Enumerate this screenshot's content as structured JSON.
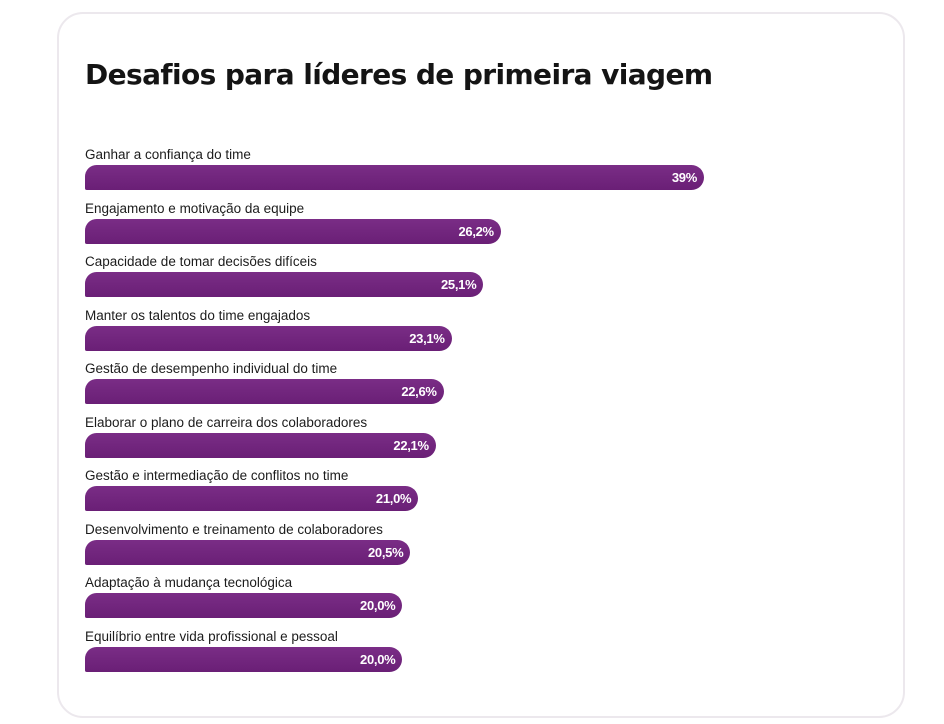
{
  "chart_data": {
    "type": "bar",
    "orientation": "horizontal",
    "title": "Desafios para líderes de primeira viagem",
    "categories": [
      "Ganhar a confiança do time",
      "Engajamento e motivação da equipe",
      "Capacidade de tomar decisões difíceis",
      "Manter os talentos do time engajados",
      "Gestão de desempenho individual do time",
      "Elaborar o plano de carreira dos colaboradores",
      "Gestão e intermediação de conflitos no time",
      "Desenvolvimento e treinamento de colaboradores",
      "Adaptação à mudança tecnológica",
      "Equilíbrio entre vida profissional e pessoal"
    ],
    "values": [
      39,
      26.2,
      25.1,
      23.1,
      22.6,
      22.1,
      21.0,
      20.5,
      20.0,
      20.0
    ],
    "value_labels": [
      "39%",
      "26,2%",
      "25,1%",
      "23,1%",
      "22,6%",
      "22,1%",
      "21,0%",
      "20,5%",
      "20,0%",
      "20,0%"
    ],
    "bar_color": "#6e2279",
    "label_color": "#ffffff",
    "grid": false,
    "legend": "none"
  }
}
